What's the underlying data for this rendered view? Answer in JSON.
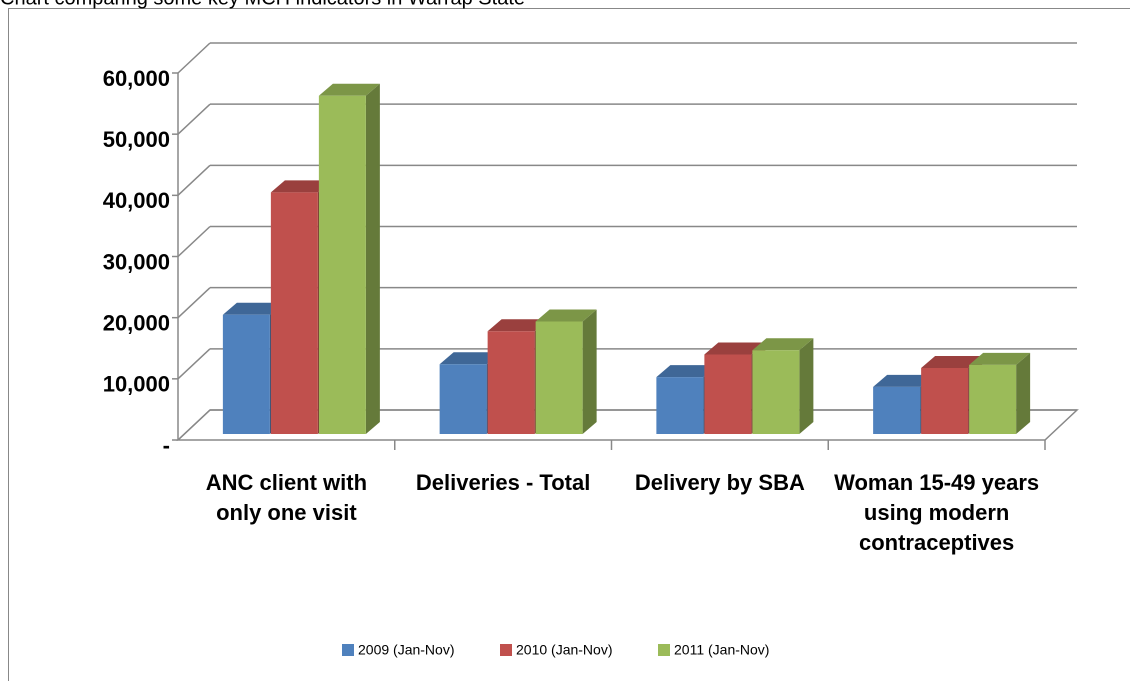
{
  "chart_data": {
    "type": "bar3d",
    "title": "Chart comparing some key MCH indicators in Warrap State",
    "categories": [
      "ANC client with only one visit",
      "Deliveries - Total",
      "Delivery by SBA",
      "Woman 15-49 years using modern contraceptives"
    ],
    "series": [
      {
        "name": "2009 (Jan-Nov)",
        "color": "#4f81bd",
        "values": [
          19500,
          11400,
          9300,
          7700
        ]
      },
      {
        "name": "2010 (Jan-Nov)",
        "color": "#c0504d",
        "values": [
          39500,
          16800,
          13000,
          10800
        ]
      },
      {
        "name": "2011 (Jan-Nov)",
        "color": "#9bbb59",
        "values": [
          55300,
          18400,
          13700,
          11300
        ]
      }
    ],
    "ylim": [
      0,
      60000
    ],
    "yticks": [
      {
        "value": 0,
        "label": "-"
      },
      {
        "value": 10000,
        "label": "10,000"
      },
      {
        "value": 20000,
        "label": "20,000"
      },
      {
        "value": 30000,
        "label": "30,000"
      },
      {
        "value": 40000,
        "label": "40,000"
      },
      {
        "value": 50000,
        "label": "50,000"
      },
      {
        "value": 60000,
        "label": "60,000"
      }
    ],
    "grid": true,
    "legend": "bottom"
  }
}
